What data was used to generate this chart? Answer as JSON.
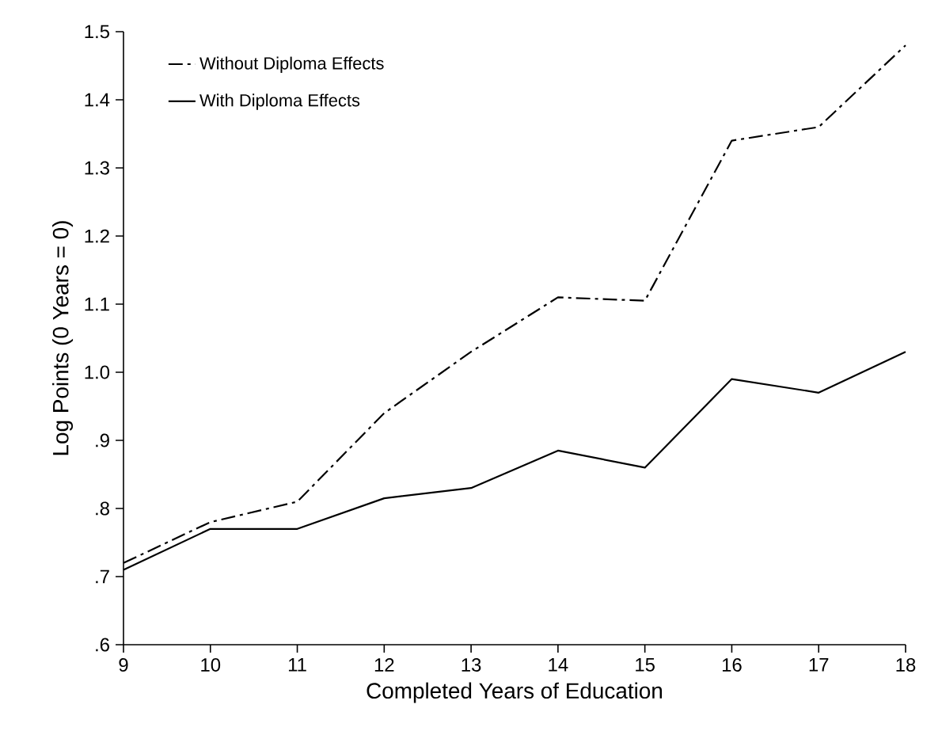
{
  "chart_data": {
    "type": "line",
    "xlabel": "Completed Years of Education",
    "ylabel": "Log Points (0 Years = 0)",
    "x": [
      9,
      10,
      11,
      12,
      13,
      14,
      15,
      16,
      17,
      18
    ],
    "series": [
      {
        "name": "Without Diploma Effects",
        "color": "#000000",
        "line_style": "dashdot",
        "values": [
          0.72,
          0.78,
          0.81,
          0.94,
          1.03,
          1.11,
          1.105,
          1.34,
          1.36,
          1.48
        ]
      },
      {
        "name": "With Diploma Effects",
        "color": "#000000",
        "line_style": "solid",
        "values": [
          0.71,
          0.77,
          0.77,
          0.815,
          0.83,
          0.885,
          0.86,
          0.99,
          0.97,
          1.03
        ]
      }
    ],
    "xlim": [
      9,
      18
    ],
    "ylim": [
      0.6,
      1.5
    ],
    "xticks": [
      9,
      10,
      11,
      12,
      13,
      14,
      15,
      16,
      17,
      18
    ],
    "yticks": [
      {
        "value": 0.6,
        "label": ".6"
      },
      {
        "value": 0.7,
        "label": ".7"
      },
      {
        "value": 0.8,
        "label": ".8"
      },
      {
        "value": 0.9,
        "label": ".9"
      },
      {
        "value": 1.0,
        "label": "1.0"
      },
      {
        "value": 1.1,
        "label": "1.1"
      },
      {
        "value": 1.2,
        "label": "1.2"
      },
      {
        "value": 1.3,
        "label": "1.3"
      },
      {
        "value": 1.4,
        "label": "1.4"
      },
      {
        "value": 1.5,
        "label": "1.5"
      }
    ],
    "legend": "top left",
    "grid": false,
    "marker": "none"
  }
}
